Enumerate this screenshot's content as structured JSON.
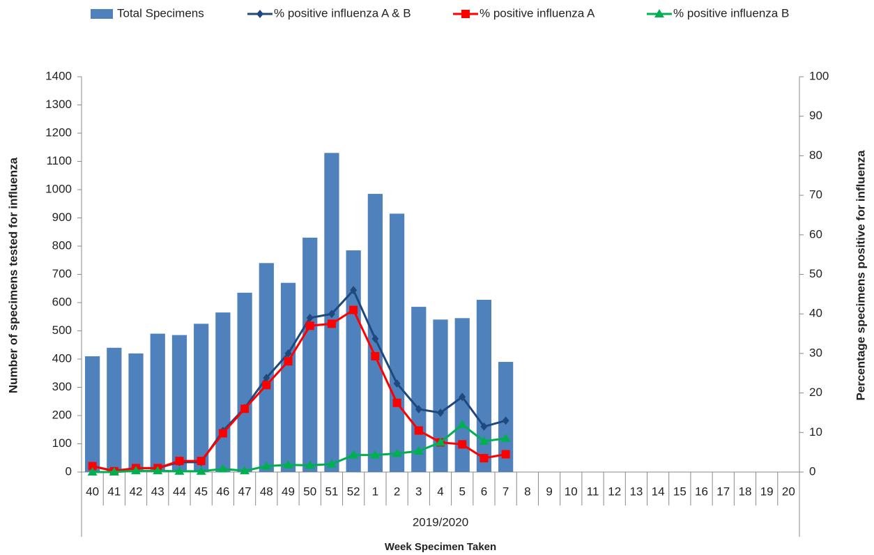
{
  "chart_data": {
    "type": "bar",
    "x_label": "Week Specimen Taken",
    "group_label": "2019/2020",
    "y_label": "Number of specimens tested for influenza",
    "y2_label": "Percentage specimens positive for influenza",
    "categories": [
      "40",
      "41",
      "42",
      "43",
      "44",
      "45",
      "46",
      "47",
      "48",
      "49",
      "50",
      "51",
      "52",
      "1",
      "2",
      "3",
      "4",
      "5",
      "6",
      "7",
      "8",
      "9",
      "10",
      "11",
      "12",
      "13",
      "14",
      "15",
      "16",
      "17",
      "18",
      "19",
      "20"
    ],
    "ylim": [
      0,
      1400
    ],
    "yticks": [
      0,
      100,
      200,
      300,
      400,
      500,
      600,
      700,
      800,
      900,
      1000,
      1100,
      1200,
      1300,
      1400
    ],
    "y2lim": [
      0,
      100
    ],
    "y2ticks": [
      0,
      10,
      20,
      30,
      40,
      50,
      60,
      70,
      80,
      90,
      100
    ],
    "series": [
      {
        "name": "Total Specimens",
        "type": "bar",
        "color": "#4f81bd",
        "values": [
          410,
          440,
          420,
          490,
          485,
          525,
          565,
          635,
          740,
          670,
          830,
          1130,
          785,
          985,
          915,
          585,
          540,
          545,
          610,
          390,
          null,
          null,
          null,
          null,
          null,
          null,
          null,
          null,
          null,
          null,
          null,
          null,
          null
        ]
      },
      {
        "name": "% positive influenza A & B",
        "type": "line",
        "axis": "y2",
        "marker": "diamond",
        "color": "#1f497d",
        "values": [
          1.5,
          0.3,
          1,
          1,
          2.5,
          2.5,
          10.4,
          16.2,
          23.8,
          30,
          39,
          40,
          46,
          33.7,
          22.4,
          15.9,
          15,
          19,
          11.5,
          13,
          null,
          null,
          null,
          null,
          null,
          null,
          null,
          null,
          null,
          null,
          null,
          null,
          null
        ]
      },
      {
        "name": "% positive influenza A",
        "type": "line",
        "axis": "y2",
        "marker": "square",
        "color": "#ff0000",
        "values": [
          1.5,
          0.2,
          1,
          1,
          2.8,
          2.8,
          9.8,
          16,
          22,
          28,
          37,
          37.5,
          41,
          29.3,
          17.5,
          10.5,
          7.5,
          7,
          3.5,
          4.5,
          null,
          null,
          null,
          null,
          null,
          null,
          null,
          null,
          null,
          null,
          null,
          null,
          null
        ]
      },
      {
        "name": "% positive influenza B",
        "type": "line",
        "axis": "y2",
        "marker": "triangle",
        "color": "#00b050",
        "values": [
          0,
          0,
          0.3,
          0.3,
          0.2,
          0.2,
          0.8,
          0.3,
          1.5,
          1.8,
          1.7,
          2,
          4.3,
          4.3,
          4.7,
          5.3,
          7.5,
          12,
          7.8,
          8.5,
          null,
          null,
          null,
          null,
          null,
          null,
          null,
          null,
          null,
          null,
          null,
          null,
          null
        ]
      }
    ]
  }
}
